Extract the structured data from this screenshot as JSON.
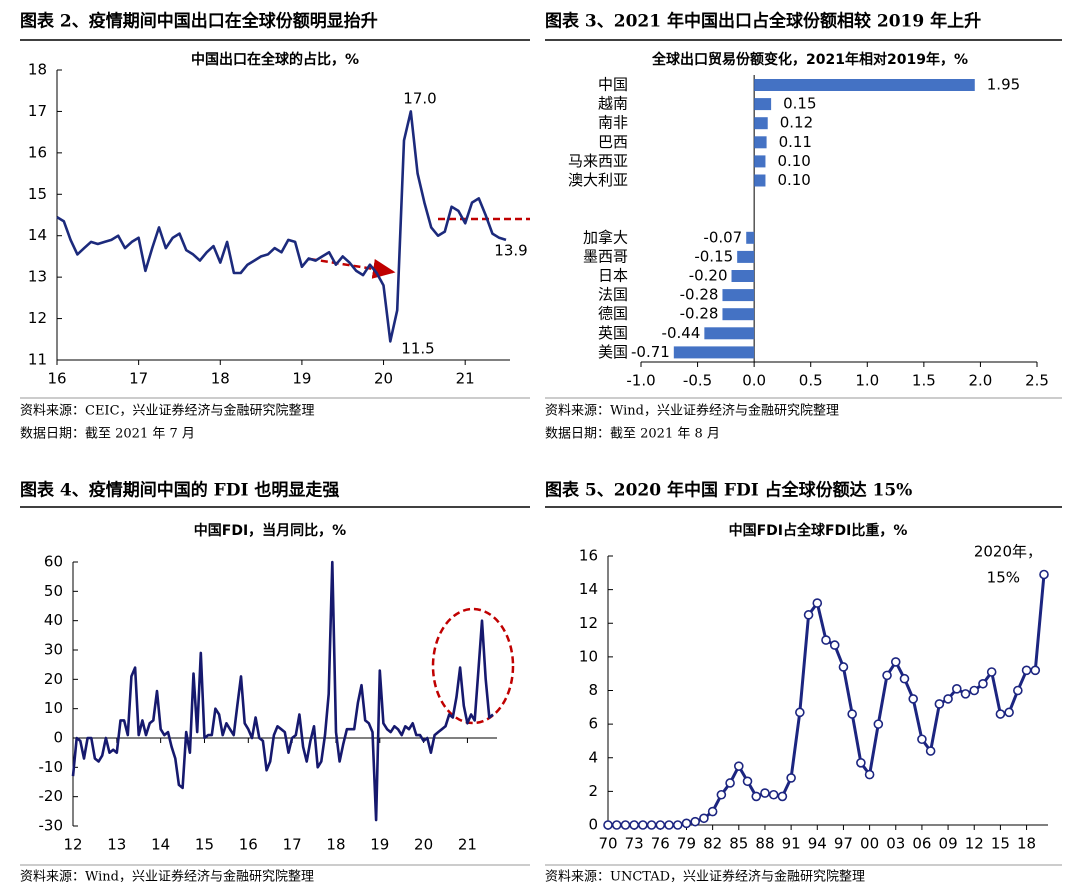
{
  "chart_data": [
    {
      "type": "line",
      "heading": "图表 2、疫情期间中国出口在全球份额明显抬升",
      "title": "中国出口在全球的占比，%",
      "categories": [
        "16",
        null,
        null,
        null,
        null,
        null,
        null,
        null,
        null,
        null,
        null,
        null,
        "17",
        null,
        null,
        null,
        null,
        null,
        null,
        null,
        null,
        null,
        null,
        null,
        "18",
        null,
        null,
        null,
        null,
        null,
        null,
        null,
        null,
        null,
        null,
        null,
        "19",
        null,
        null,
        null,
        null,
        null,
        null,
        null,
        null,
        null,
        null,
        null,
        "20",
        null,
        null,
        null,
        null,
        null,
        null,
        null,
        null,
        null,
        null,
        null,
        "21",
        null,
        null,
        null,
        null,
        null,
        null
      ],
      "values": [
        14.45,
        14.35,
        13.9,
        13.55,
        13.7,
        13.85,
        13.8,
        13.85,
        13.9,
        14.0,
        13.7,
        13.85,
        13.95,
        13.15,
        13.7,
        14.2,
        13.7,
        13.95,
        14.05,
        13.65,
        13.55,
        13.4,
        13.6,
        13.75,
        13.35,
        13.85,
        13.1,
        13.1,
        13.3,
        13.4,
        13.5,
        13.55,
        13.7,
        13.6,
        13.9,
        13.85,
        13.25,
        13.45,
        13.4,
        13.5,
        13.6,
        13.3,
        13.5,
        13.35,
        13.15,
        13.05,
        13.3,
        13.1,
        12.8,
        11.45,
        12.2,
        16.3,
        17.0,
        15.5,
        14.8,
        14.2,
        14.0,
        14.1,
        14.7,
        14.6,
        14.3,
        14.8,
        14.9,
        14.5,
        14.05,
        13.95,
        13.9
      ],
      "color": "#1c2a7c",
      "ylim": [
        11,
        18
      ],
      "yticks": [
        11,
        12,
        13,
        14,
        15,
        16,
        17,
        18
      ],
      "annotations": [
        "17.0",
        "11.5",
        "13.9"
      ],
      "source": "资料来源：CEIC，兴业证券经济与金融研究院整理",
      "date_note": "数据日期：截至 2021 年 7 月"
    },
    {
      "type": "bar",
      "orientation": "horizontal",
      "heading": "图表 3、2021 年中国出口占全球份额相较 2019 年上升",
      "title": "全球出口贸易份额变化，2021年相对2019年，%",
      "categories": [
        "中国",
        "越南",
        "南非",
        "巴西",
        "马来西亚",
        "澳大利亚",
        null,
        null,
        "加拿大",
        "墨西哥",
        "日本",
        "法国",
        "德国",
        "英国",
        "美国"
      ],
      "values": [
        1.95,
        0.15,
        0.12,
        0.11,
        0.1,
        0.1,
        null,
        null,
        -0.07,
        -0.15,
        -0.2,
        -0.28,
        -0.28,
        -0.44,
        -0.71
      ],
      "value_labels": [
        "1.95",
        "0.15",
        "0.12",
        "0.11",
        "0.10",
        "0.10",
        null,
        null,
        "-0.07",
        "-0.15",
        "-0.20",
        "-0.28",
        "-0.28",
        "-0.44",
        "-0.71"
      ],
      "color": "#4472c4",
      "xlim": [
        -1,
        2.5
      ],
      "xticks": [
        {
          "value": -1,
          "label": "-1.0"
        },
        -0.5,
        {
          "value": 0,
          "label": "0.0"
        },
        0.5,
        {
          "value": 1,
          "label": "1.0"
        },
        1.5,
        {
          "value": 2,
          "label": "2.0"
        },
        2.5
      ],
      "source": "资料来源：Wind，兴业证券经济与金融研究院整理",
      "date_note": "数据日期：截至 2021 年 8 月"
    },
    {
      "type": "line",
      "heading": "图表 4、疫情期间中国的 FDI 也明显走强",
      "title": "中国FDI，当月同比，%",
      "categories": [
        "12",
        null,
        null,
        null,
        null,
        null,
        null,
        null,
        null,
        null,
        null,
        null,
        "13",
        null,
        null,
        null,
        null,
        null,
        null,
        null,
        null,
        null,
        null,
        null,
        "14",
        null,
        null,
        null,
        null,
        null,
        null,
        null,
        null,
        null,
        null,
        null,
        "15",
        null,
        null,
        null,
        null,
        null,
        null,
        null,
        null,
        null,
        null,
        null,
        "16",
        null,
        null,
        null,
        null,
        null,
        null,
        null,
        null,
        null,
        null,
        null,
        "17",
        null,
        null,
        null,
        null,
        null,
        null,
        null,
        null,
        null,
        null,
        null,
        "18",
        null,
        null,
        null,
        null,
        null,
        null,
        null,
        null,
        null,
        null,
        null,
        "19",
        null,
        null,
        null,
        null,
        null,
        null,
        null,
        null,
        null,
        null,
        null,
        "20",
        null,
        null,
        null,
        null,
        null,
        null,
        null,
        null,
        null,
        null,
        null,
        "21",
        null,
        null,
        null,
        null,
        null,
        null,
        null
      ],
      "values": [
        -13,
        0,
        -1,
        -7,
        0,
        0,
        -7,
        -8,
        -6,
        0,
        -5,
        -4,
        -5,
        6,
        6,
        1,
        21,
        24,
        1,
        6,
        1,
        5,
        6,
        16,
        3,
        1,
        2,
        -3,
        -7,
        -16,
        -17,
        2,
        -5,
        22,
        2,
        29,
        0,
        1,
        1,
        10,
        8,
        1,
        5,
        3,
        1,
        11,
        21,
        5,
        3,
        0,
        7,
        0,
        -1,
        -11,
        -8,
        1,
        4,
        3,
        2,
        -5,
        0,
        1,
        8,
        -3,
        -8,
        -1,
        4,
        -10,
        -8,
        1,
        15,
        60,
        2,
        -8,
        -2,
        3,
        3,
        3,
        12,
        18,
        6,
        5,
        2,
        -28,
        23,
        5,
        3,
        2,
        4,
        3,
        1,
        4,
        3,
        5,
        1,
        1,
        -1,
        0,
        -5,
        1,
        2,
        3,
        4,
        8,
        7,
        14,
        24,
        11,
        5,
        8,
        6,
        23,
        40,
        20,
        7,
        8
      ],
      "color": "#16196e",
      "ylim": [
        -30,
        60
      ],
      "yticks": [
        -30,
        -20,
        -10,
        0,
        10,
        20,
        30,
        40,
        50,
        60
      ],
      "source": "资料来源：Wind，兴业证券经济与金融研究院整理"
    },
    {
      "type": "line",
      "markers": true,
      "heading": "图表 5、2020 年中国 FDI 占全球份额达 15%",
      "title": "中国FDI占全球FDI比重，%",
      "categories": [
        "70",
        null,
        null,
        "73",
        null,
        null,
        "76",
        null,
        null,
        "79",
        null,
        null,
        "82",
        null,
        null,
        "85",
        null,
        null,
        "88",
        null,
        null,
        "91",
        null,
        null,
        "94",
        null,
        null,
        "97",
        null,
        null,
        "00",
        null,
        null,
        "03",
        null,
        null,
        "06",
        null,
        null,
        "09",
        null,
        null,
        "12",
        null,
        null,
        "15",
        null,
        null,
        "18",
        null,
        null
      ],
      "values": [
        0,
        0,
        0,
        0,
        0,
        0,
        0,
        0,
        0,
        0.1,
        0.2,
        0.4,
        0.8,
        1.8,
        2.5,
        3.5,
        2.6,
        1.7,
        1.9,
        1.8,
        1.7,
        2.8,
        6.7,
        12.5,
        13.2,
        11.0,
        10.7,
        9.4,
        6.6,
        3.7,
        3.0,
        6.0,
        8.9,
        9.7,
        8.7,
        7.5,
        5.1,
        4.4,
        7.2,
        7.5,
        8.1,
        7.8,
        8.0,
        8.4,
        9.1,
        6.6,
        6.7,
        8.0,
        9.2,
        9.2,
        14.9
      ],
      "color": "#1c2580",
      "ylim": [
        0,
        16
      ],
      "yticks": [
        0,
        2,
        4,
        6,
        8,
        10,
        12,
        14,
        16
      ],
      "annotations": [
        "2020年，",
        "15%"
      ],
      "source": "资料来源：UNCTAD，兴业证券经济与金融研究院整理"
    }
  ]
}
